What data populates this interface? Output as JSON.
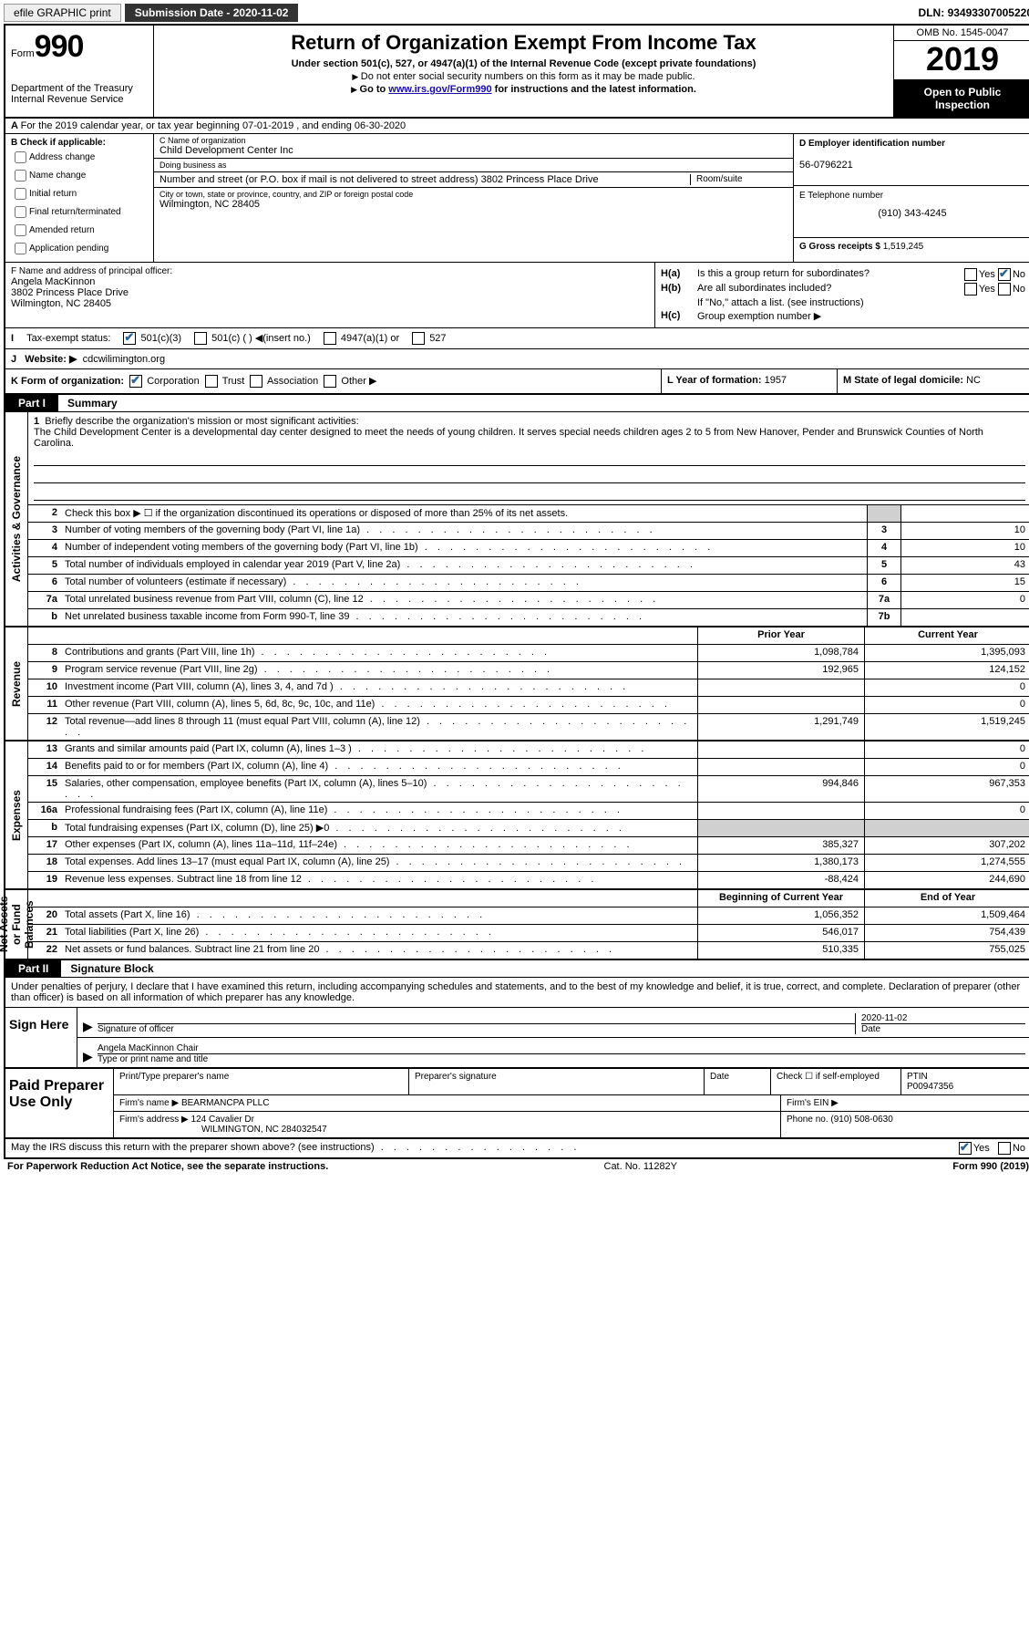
{
  "topbar": {
    "efile": "efile GRAPHIC print",
    "submission_label": "Submission Date",
    "submission_date": "2020-11-02",
    "dln_label": "DLN:",
    "dln": "93493307005220"
  },
  "header": {
    "form_word": "Form",
    "form_num": "990",
    "dept": "Department of the Treasury",
    "irs": "Internal Revenue Service",
    "title": "Return of Organization Exempt From Income Tax",
    "sub1": "Under section 501(c), 527, or 4947(a)(1) of the Internal Revenue Code (except private foundations)",
    "sub2": "Do not enter social security numbers on this form as it may be made public.",
    "sub3_pre": "Go to ",
    "sub3_link": "www.irs.gov/Form990",
    "sub3_post": " for instructions and the latest information.",
    "omb": "OMB No. 1545-0047",
    "year": "2019",
    "inspection": "Open to Public Inspection"
  },
  "row_a": "For the 2019 calendar year, or tax year beginning 07-01-2019    , and ending 06-30-2020",
  "box_b": {
    "title": "B Check if applicable:",
    "opts": [
      "Address change",
      "Name change",
      "Initial return",
      "Final return/terminated",
      "Amended return",
      "Application pending"
    ]
  },
  "box_c": {
    "name_lbl": "C Name of organization",
    "name": "Child Development Center Inc",
    "dba_lbl": "Doing business as",
    "dba": "",
    "addr_lbl": "Number and street (or P.O. box if mail is not delivered to street address)",
    "addr": "3802 Princess Place Drive",
    "room_lbl": "Room/suite",
    "city_lbl": "City or town, state or province, country, and ZIP or foreign postal code",
    "city": "Wilmington, NC  28405"
  },
  "box_d": {
    "lbl": "D Employer identification number",
    "val": "56-0796221"
  },
  "box_e": {
    "lbl": "E Telephone number",
    "val": "(910) 343-4245"
  },
  "box_g": {
    "lbl": "G Gross receipts $",
    "val": "1,519,245"
  },
  "box_f": {
    "lbl": "F  Name and address of principal officer:",
    "name": "Angela MacKinnon",
    "addr1": "3802 Princess Place Drive",
    "addr2": "Wilmington, NC  28405"
  },
  "box_h": {
    "a_lbl": "H(a)",
    "a_txt": "Is this a group return for subordinates?",
    "a_yes": "Yes",
    "a_no": "No",
    "b_lbl": "H(b)",
    "b_txt": "Are all subordinates included?",
    "note": "If \"No,\" attach a list. (see instructions)",
    "c_lbl": "H(c)",
    "c_txt": "Group exemption number ▶"
  },
  "row_i": {
    "lbl": "Tax-exempt status:",
    "o1": "501(c)(3)",
    "o2": "501(c) (  ) ◀(insert no.)",
    "o3": "4947(a)(1) or",
    "o4": "527"
  },
  "row_j": {
    "lbl": "J",
    "txt": "Website: ▶",
    "val": "cdcwilimington.org"
  },
  "row_k": {
    "lbl": "K Form of organization:",
    "o1": "Corporation",
    "o2": "Trust",
    "o3": "Association",
    "o4": "Other ▶"
  },
  "row_l": {
    "lbl": "L Year of formation:",
    "val": "1957"
  },
  "row_m": {
    "lbl": "M State of legal domicile:",
    "val": "NC"
  },
  "parts": {
    "p1_tab": "Part I",
    "p1_title": "Summary",
    "p2_tab": "Part II",
    "p2_title": "Signature Block"
  },
  "mission": {
    "num": "1",
    "lbl": "Briefly describe the organization's mission or most significant activities:",
    "txt": "The Child Development Center is a developmental day center designed to meet the needs of young children. It serves special needs children ages 2 to 5 from New Hanover, Pender and Brunswick Counties of North Carolina."
  },
  "gov_lines": [
    {
      "n": "2",
      "t": "Check this box ▶ ☐  if the organization discontinued its operations or disposed of more than 25% of its net assets.",
      "box": "",
      "v": ""
    },
    {
      "n": "3",
      "t": "Number of voting members of the governing body (Part VI, line 1a)",
      "box": "3",
      "v": "10"
    },
    {
      "n": "4",
      "t": "Number of independent voting members of the governing body (Part VI, line 1b)",
      "box": "4",
      "v": "10"
    },
    {
      "n": "5",
      "t": "Total number of individuals employed in calendar year 2019 (Part V, line 2a)",
      "box": "5",
      "v": "43"
    },
    {
      "n": "6",
      "t": "Total number of volunteers (estimate if necessary)",
      "box": "6",
      "v": "15"
    },
    {
      "n": "7a",
      "t": "Total unrelated business revenue from Part VIII, column (C), line 12",
      "box": "7a",
      "v": "0"
    },
    {
      "n": "b",
      "t": "Net unrelated business taxable income from Form 990-T, line 39",
      "box": "7b",
      "v": ""
    }
  ],
  "rev_hdr": {
    "prior": "Prior Year",
    "current": "Current Year"
  },
  "rev_lines": [
    {
      "n": "8",
      "t": "Contributions and grants (Part VIII, line 1h)",
      "p": "1,098,784",
      "c": "1,395,093"
    },
    {
      "n": "9",
      "t": "Program service revenue (Part VIII, line 2g)",
      "p": "192,965",
      "c": "124,152"
    },
    {
      "n": "10",
      "t": "Investment income (Part VIII, column (A), lines 3, 4, and 7d )",
      "p": "",
      "c": "0"
    },
    {
      "n": "11",
      "t": "Other revenue (Part VIII, column (A), lines 5, 6d, 8c, 9c, 10c, and 11e)",
      "p": "",
      "c": "0"
    },
    {
      "n": "12",
      "t": "Total revenue—add lines 8 through 11 (must equal Part VIII, column (A), line 12)",
      "p": "1,291,749",
      "c": "1,519,245"
    }
  ],
  "exp_lines": [
    {
      "n": "13",
      "t": "Grants and similar amounts paid (Part IX, column (A), lines 1–3 )",
      "p": "",
      "c": "0"
    },
    {
      "n": "14",
      "t": "Benefits paid to or for members (Part IX, column (A), line 4)",
      "p": "",
      "c": "0"
    },
    {
      "n": "15",
      "t": "Salaries, other compensation, employee benefits (Part IX, column (A), lines 5–10)",
      "p": "994,846",
      "c": "967,353"
    },
    {
      "n": "16a",
      "t": "Professional fundraising fees (Part IX, column (A), line 11e)",
      "p": "",
      "c": "0"
    },
    {
      "n": "b",
      "t": "Total fundraising expenses (Part IX, column (D), line 25) ▶0",
      "p": "shade",
      "c": "shade"
    },
    {
      "n": "17",
      "t": "Other expenses (Part IX, column (A), lines 11a–11d, 11f–24e)",
      "p": "385,327",
      "c": "307,202"
    },
    {
      "n": "18",
      "t": "Total expenses. Add lines 13–17 (must equal Part IX, column (A), line 25)",
      "p": "1,380,173",
      "c": "1,274,555"
    },
    {
      "n": "19",
      "t": "Revenue less expenses. Subtract line 18 from line 12",
      "p": "-88,424",
      "c": "244,690"
    }
  ],
  "na_hdr": {
    "begin": "Beginning of Current Year",
    "end": "End of Year"
  },
  "na_lines": [
    {
      "n": "20",
      "t": "Total assets (Part X, line 16)",
      "p": "1,056,352",
      "c": "1,509,464"
    },
    {
      "n": "21",
      "t": "Total liabilities (Part X, line 26)",
      "p": "546,017",
      "c": "754,439"
    },
    {
      "n": "22",
      "t": "Net assets or fund balances. Subtract line 21 from line 20",
      "p": "510,335",
      "c": "755,025"
    }
  ],
  "vlabels": {
    "gov": "Activities & Governance",
    "rev": "Revenue",
    "exp": "Expenses",
    "na": "Net Assets or Fund Balances"
  },
  "sig_intro": "Under penalties of perjury, I declare that I have examined this return, including accompanying schedules and statements, and to the best of my knowledge and belief, it is true, correct, and complete. Declaration of preparer (other than officer) is based on all information of which preparer has any knowledge.",
  "sign_here": {
    "label": "Sign Here",
    "sig_lbl": "Signature of officer",
    "date_lbl": "Date",
    "date": "2020-11-02",
    "name": "Angela MacKinnon  Chair",
    "name_lbl": "Type or print name and title"
  },
  "prep": {
    "label": "Paid Preparer Use Only",
    "c1": "Print/Type preparer's name",
    "c2": "Preparer's signature",
    "c3": "Date",
    "c4_lbl": "Check ☐ if self-employed",
    "c5_lbl": "PTIN",
    "c5_val": "P00947356",
    "firm_name_lbl": "Firm's name    ▶",
    "firm_name": "BEARMANCPA PLLC",
    "firm_ein_lbl": "Firm's EIN ▶",
    "firm_addr_lbl": "Firm's address ▶",
    "firm_addr1": "124 Cavalier Dr",
    "firm_addr2": "WILMINGTON, NC  284032547",
    "phone_lbl": "Phone no.",
    "phone": "(910) 508-0630"
  },
  "discuss": {
    "txt": "May the IRS discuss this return with the preparer shown above? (see instructions)",
    "yes": "Yes",
    "no": "No"
  },
  "footer": {
    "left": "For Paperwork Reduction Act Notice, see the separate instructions.",
    "mid": "Cat. No. 11282Y",
    "right": "Form 990 (2019)"
  }
}
